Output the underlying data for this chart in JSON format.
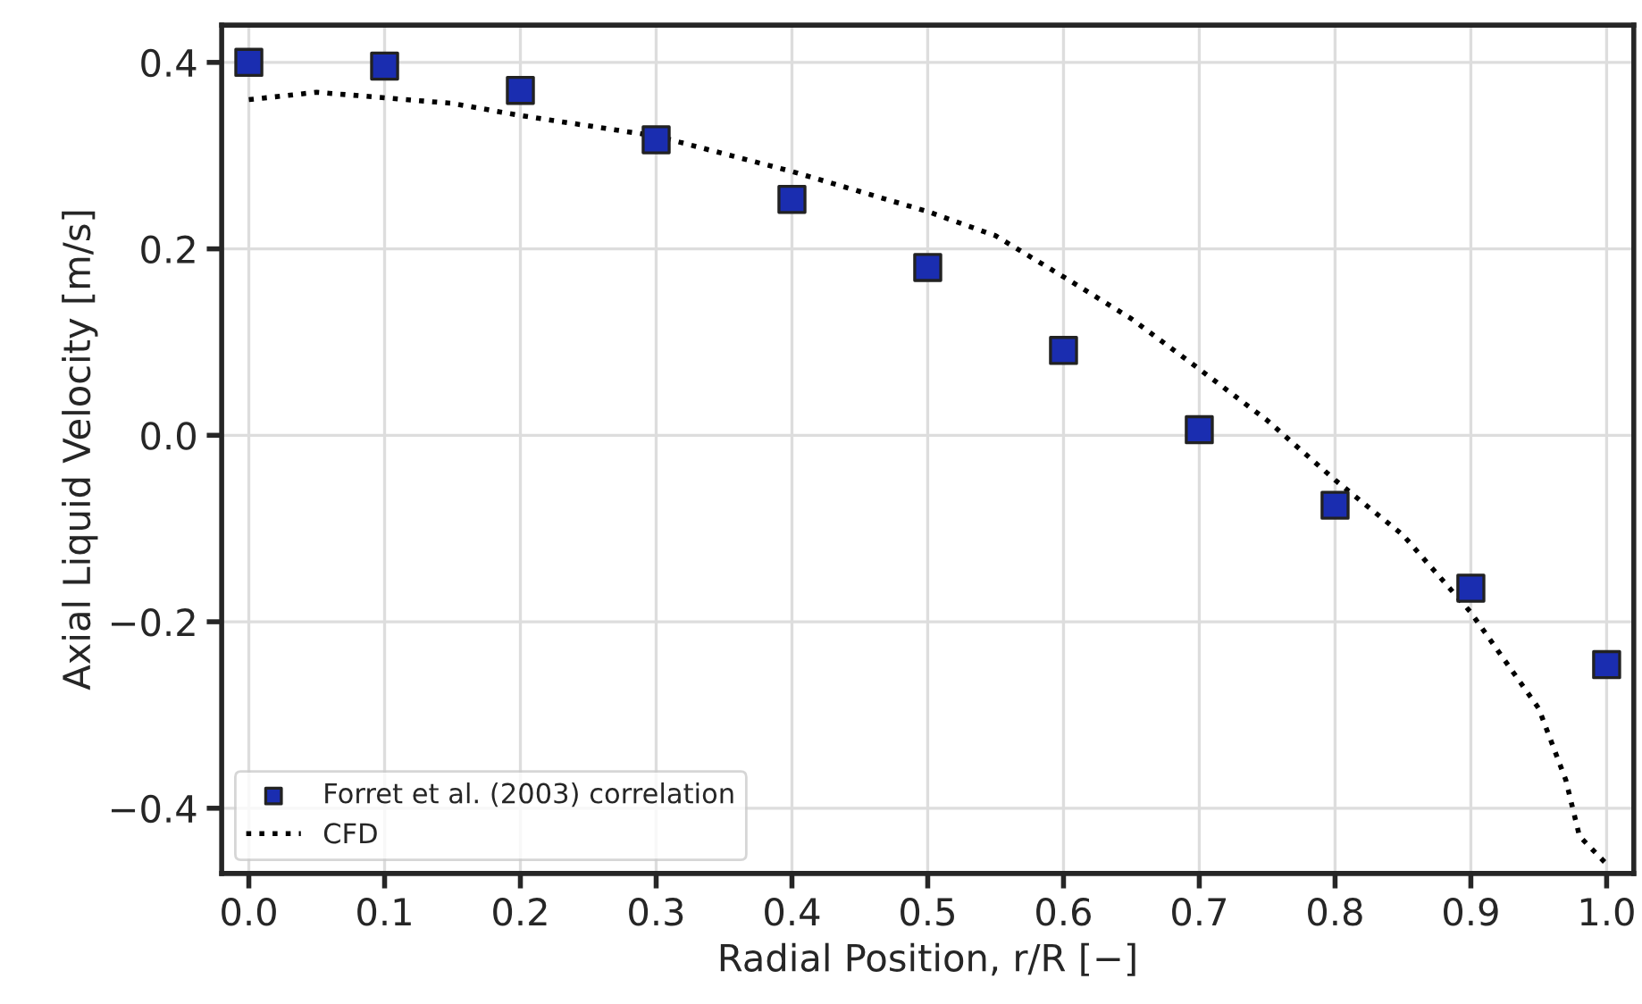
{
  "chart_data": {
    "type": "scatter",
    "xlabel": "Radial Position, r/R [−]",
    "ylabel": "Axial Liquid Velocity [m/s]",
    "xlim": [
      -0.02,
      1.02
    ],
    "xticks": [
      {
        "value": 0,
        "label": "0.0"
      },
      0.1,
      0.2,
      0.3,
      0.4,
      0.5,
      0.6,
      0.7,
      0.8,
      0.9,
      {
        "value": 1,
        "label": "1.0"
      }
    ],
    "ylim": [
      -0.47,
      0.44
    ],
    "yticks": [
      {
        "value": -0.4,
        "label": "−0.4"
      },
      {
        "value": -0.2,
        "label": "−0.2"
      },
      {
        "value": 0,
        "label": "0.0"
      },
      0.2,
      0.4
    ],
    "grid": true,
    "legend": "bottom left",
    "series": [
      {
        "name": "Forret et al. (2003) correlation",
        "marker": "square",
        "color": "#1a2db0",
        "x": [
          0,
          0.1,
          0.2,
          0.3,
          0.4,
          0.5,
          0.6,
          0.7,
          0.8,
          0.9,
          1.0
        ],
        "values": [
          0.4,
          0.396,
          0.37,
          0.317,
          0.253,
          0.18,
          0.091,
          0.006,
          -0.075,
          -0.164,
          -0.246
        ]
      },
      {
        "name": "CFD",
        "type": "line",
        "line_style": "dotted",
        "marker": "none",
        "color": "#000000",
        "x": [
          0,
          0.05,
          0.1,
          0.15,
          0.2,
          0.3,
          0.4,
          0.5,
          0.55,
          0.6,
          0.65,
          0.7,
          0.75,
          0.8,
          0.85,
          0.9,
          0.95,
          0.97,
          0.98,
          1.0
        ],
        "values": [
          0.36,
          0.368,
          0.362,
          0.356,
          0.343,
          0.321,
          0.283,
          0.24,
          0.214,
          0.17,
          0.125,
          0.071,
          0.016,
          -0.048,
          -0.107,
          -0.19,
          -0.293,
          -0.37,
          -0.43,
          -0.46
        ]
      }
    ]
  }
}
